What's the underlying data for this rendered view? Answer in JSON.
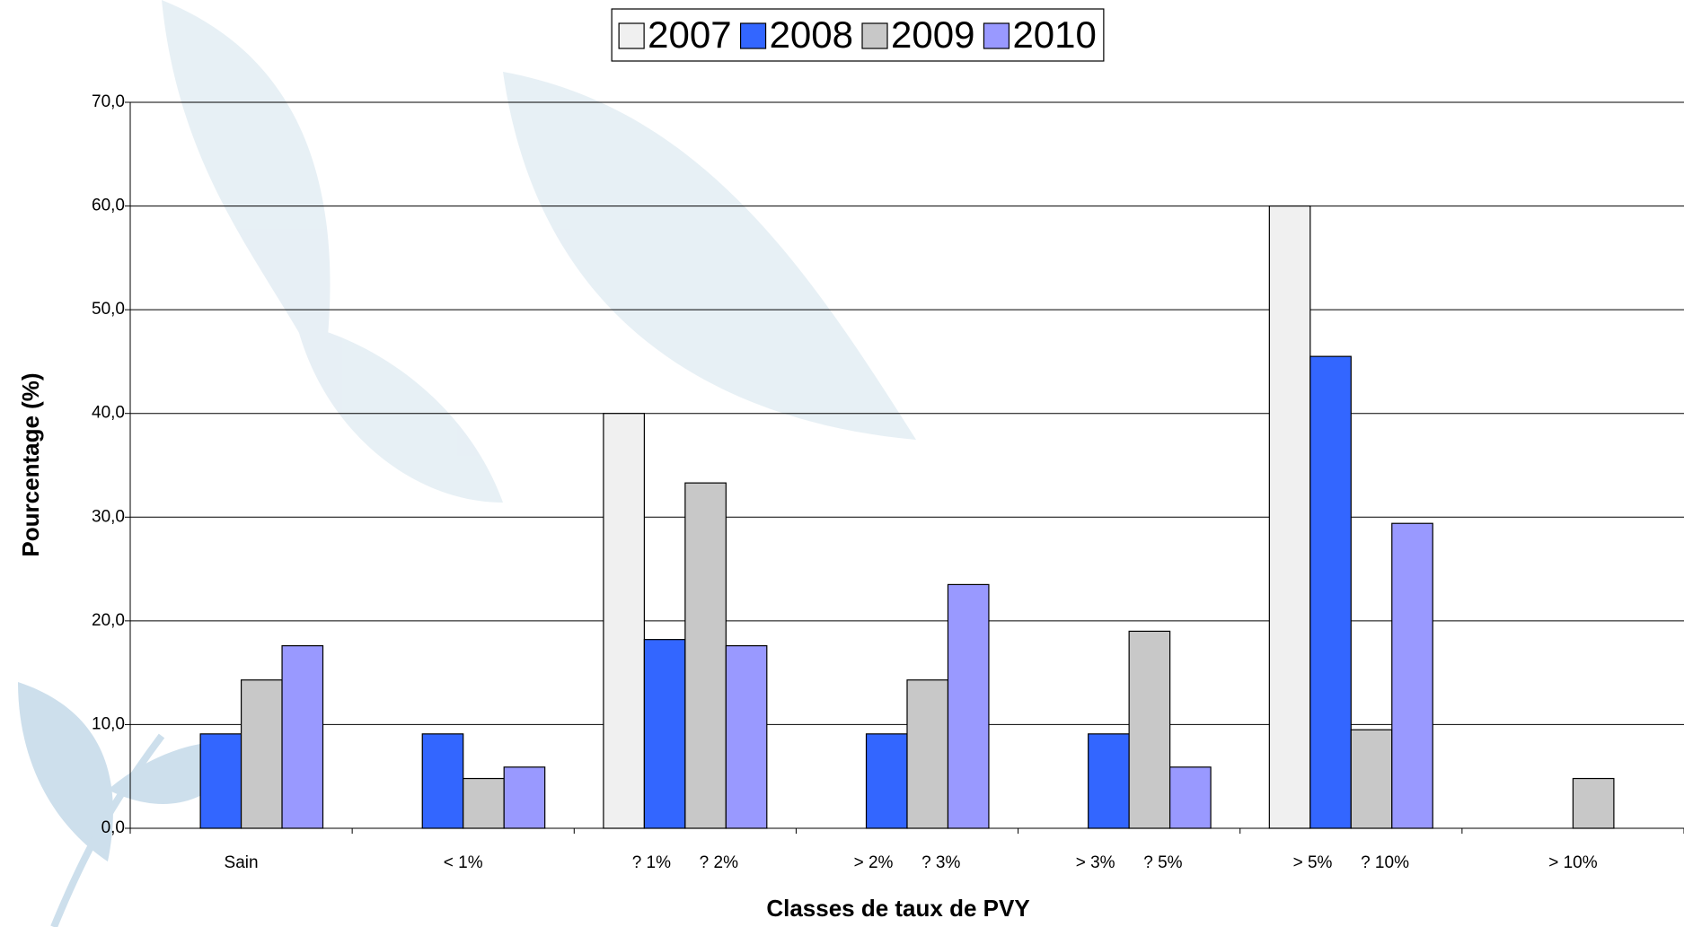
{
  "chart_data": {
    "type": "bar",
    "x_label": "Classes de taux de PVY",
    "y_label": "Pourcentage (%)",
    "categories": [
      "Sain",
      "< 1%",
      "? 1%      ? 2%",
      "> 2%      ? 3%",
      "> 3%      ? 5%",
      "> 5%      ? 10%",
      "> 10%"
    ],
    "series": [
      {
        "name": "2007",
        "color": "#f0f0f0",
        "values": [
          0,
          0,
          40.0,
          0,
          0,
          60.0,
          0
        ]
      },
      {
        "name": "2008",
        "color": "#3366ff",
        "values": [
          9.1,
          9.1,
          18.2,
          9.1,
          9.1,
          45.5,
          0
        ]
      },
      {
        "name": "2009",
        "color": "#c8c8c8",
        "values": [
          14.3,
          4.8,
          33.3,
          14.3,
          19.0,
          9.5,
          4.8
        ]
      },
      {
        "name": "2010",
        "color": "#9999ff",
        "values": [
          17.6,
          5.9,
          17.6,
          23.5,
          5.9,
          29.4,
          0
        ]
      }
    ],
    "ylim": [
      0,
      70
    ],
    "yticks": [
      {
        "value": 0,
        "label": "0,0"
      },
      {
        "value": 10,
        "label": "10,0"
      },
      {
        "value": 20,
        "label": "20,0"
      },
      {
        "value": 30,
        "label": "30,0"
      },
      {
        "value": 40,
        "label": "40,0"
      },
      {
        "value": 50,
        "label": "50,0"
      },
      {
        "value": 60,
        "label": "60,0"
      },
      {
        "value": 70,
        "label": "70,0"
      }
    ],
    "grid": true,
    "legend": "top"
  }
}
